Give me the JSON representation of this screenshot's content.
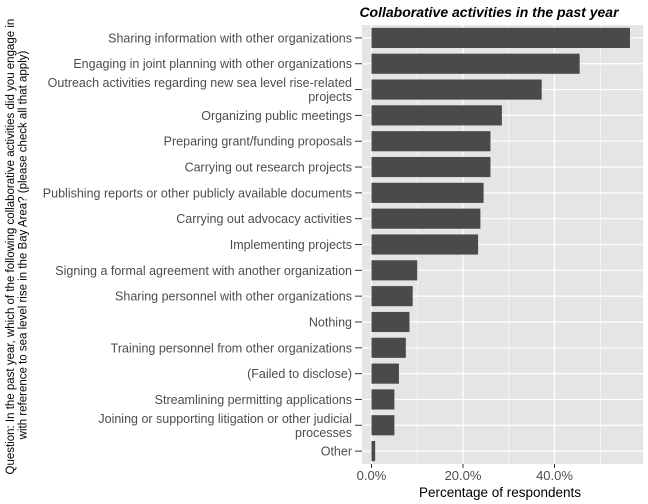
{
  "chart_data": {
    "type": "bar",
    "orientation": "horizontal",
    "title": "Collaborative activities in the past year",
    "xlabel": "Percentage of respondents",
    "ylabel_lines": [
      "Question: In the past year, which of the following collaborative activities did you engage in",
      "with reference to sea level rise in the Bay Area? (please check all that apply)"
    ],
    "x_ticks": [
      "0.0%",
      "20.0%",
      "40.0%"
    ],
    "xlim": [
      0,
      58.5
    ],
    "grid": true,
    "categories": [
      [
        "Sharing information with other organizations"
      ],
      [
        "Engaging in joint planning with other organizations"
      ],
      [
        "Outreach activities regarding new sea level rise-related",
        "projects"
      ],
      [
        "Organizing public meetings"
      ],
      [
        "Preparing grant/funding proposals"
      ],
      [
        "Carrying out research projects"
      ],
      [
        "Publishing reports or other publicly available documents"
      ],
      [
        "Carrying out advocacy activities"
      ],
      [
        "Implementing projects"
      ],
      [
        "Signing a formal agreement with another organization"
      ],
      [
        "Sharing personnel with other organizations"
      ],
      [
        "Nothing"
      ],
      [
        "Training personnel from other organizations"
      ],
      [
        "(Failed to disclose)"
      ],
      [
        "Streamlining permitting applications"
      ],
      [
        "Joining or supporting litigation or other judicial",
        "processes"
      ],
      [
        "Other"
      ]
    ],
    "values": [
      56.5,
      45.5,
      37.2,
      28.5,
      26.0,
      26.0,
      24.5,
      23.8,
      23.3,
      10.0,
      9.0,
      8.3,
      7.5,
      6.0,
      5.0,
      5.0,
      0.8
    ],
    "bar_color": "#4a4a4a",
    "panel_color": "#e5e5e5",
    "grid_color": "#ffffff"
  }
}
